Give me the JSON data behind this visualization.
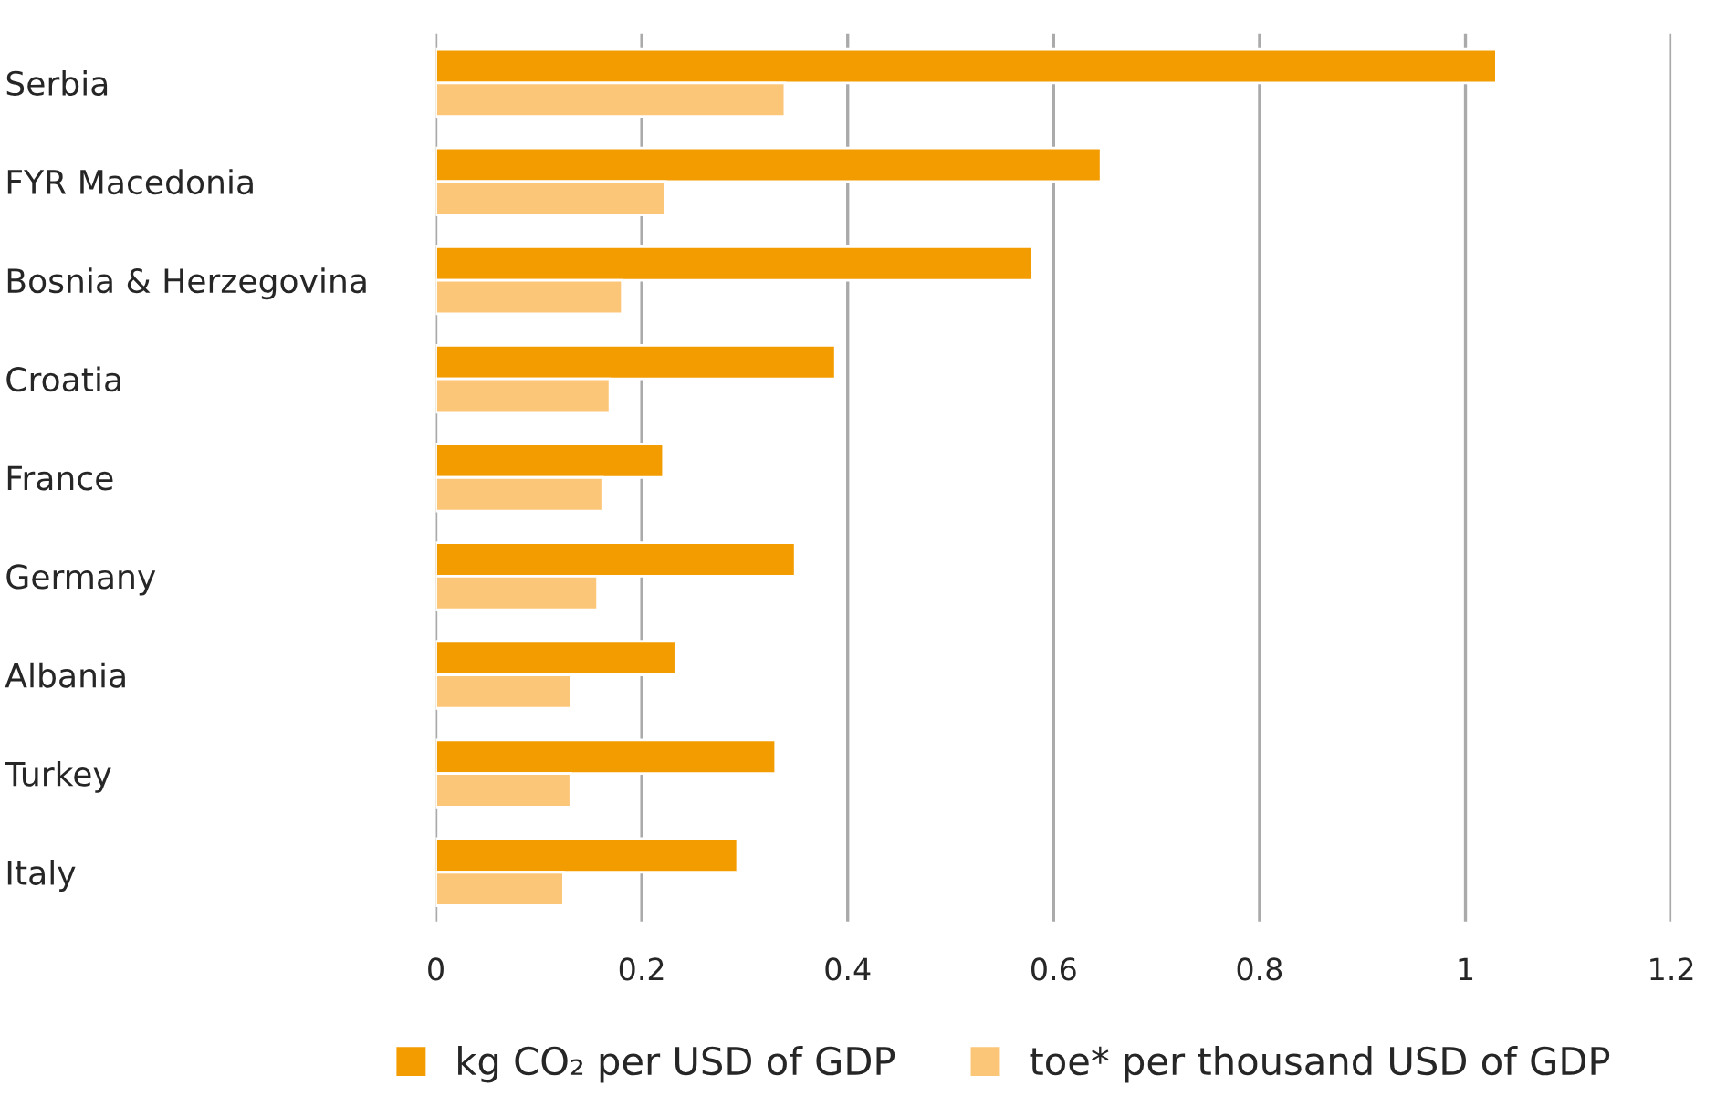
{
  "chart_data": {
    "type": "bar",
    "orientation": "horizontal",
    "categories": [
      "Serbia",
      "FYR Macedonia",
      "Bosnia & Herzegovina",
      "Croatia",
      "France",
      "Germany",
      "Albania",
      "Turkey",
      "Italy"
    ],
    "series": [
      {
        "name": "kg CO₂ per USD of GDP",
        "color": "#f39c00",
        "values": [
          1.03,
          0.646,
          0.579,
          0.388,
          0.221,
          0.349,
          0.233,
          0.33,
          0.293
        ]
      },
      {
        "name": "toe* per thousand USD of GDP",
        "color": "#fcc679",
        "values": [
          0.339,
          0.223,
          0.181,
          0.169,
          0.162,
          0.157,
          0.132,
          0.131,
          0.124
        ]
      }
    ],
    "xlim": [
      0,
      1.2
    ],
    "xticks": [
      0,
      0.2,
      0.4,
      0.6,
      0.8,
      1,
      1.2
    ],
    "grid": "x",
    "legend": "bottom"
  }
}
